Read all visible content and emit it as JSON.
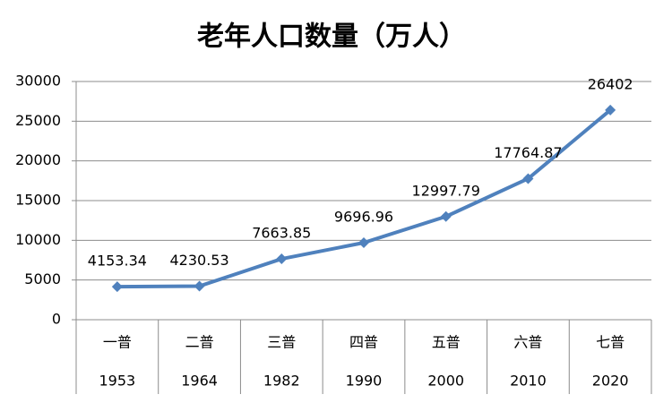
{
  "chart_data": {
    "type": "line",
    "title": "老年人口数量（万人）",
    "categories": [
      "一普",
      "二普",
      "三普",
      "四普",
      "五普",
      "六普",
      "七普"
    ],
    "category_years": [
      "1953",
      "1964",
      "1982",
      "1990",
      "2000",
      "2010",
      "2020"
    ],
    "series": [
      {
        "name": "老年人口数量",
        "color": "#4f81bd",
        "values": [
          4153.34,
          4230.53,
          7663.85,
          9696.96,
          12997.79,
          17764.87,
          26402
        ]
      }
    ],
    "ylim": [
      0,
      30000
    ],
    "yticks": [
      0,
      5000,
      10000,
      15000,
      20000,
      25000,
      30000
    ],
    "grid": true
  }
}
